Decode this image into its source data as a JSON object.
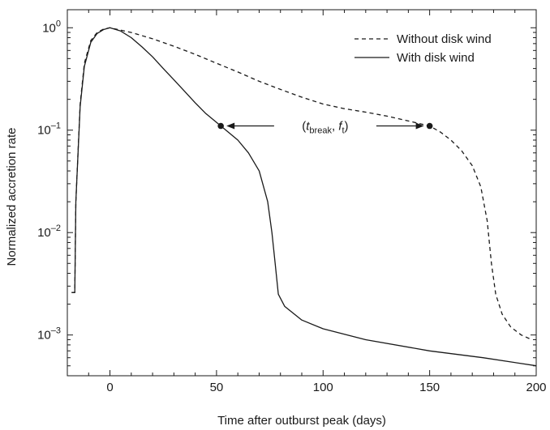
{
  "chart_data": {
    "type": "line",
    "xlabel": "Time after outburst peak (days)",
    "ylabel": "Normalized accretion rate",
    "xlim": [
      -20,
      200
    ],
    "ylim": [
      0.0004,
      1.5
    ],
    "yscale": "log",
    "grid": false,
    "legend_position": "top-right",
    "x_ticks": [
      0,
      50,
      100,
      150,
      200
    ],
    "x_tick_labels": [
      "0",
      "50",
      "100",
      "150",
      "200"
    ],
    "y_ticks": [
      0.001,
      0.01,
      0.1,
      1
    ],
    "y_tick_labels": [
      {
        "base": "10",
        "exp": "–3"
      },
      {
        "base": "10",
        "exp": "–2"
      },
      {
        "base": "10",
        "exp": "–1"
      },
      {
        "base": "10",
        "exp": "0"
      }
    ],
    "series": [
      {
        "name": "Without disk wind",
        "style": "dashed",
        "color": "#1a1a1a",
        "points": [
          [
            -18,
            0.0026
          ],
          [
            -16.5,
            0.0026
          ],
          [
            -16,
            0.02
          ],
          [
            -14,
            0.18
          ],
          [
            -12,
            0.45
          ],
          [
            -9,
            0.75
          ],
          [
            -6,
            0.9
          ],
          [
            -3,
            0.97
          ],
          [
            0,
            1.0
          ],
          [
            10,
            0.9
          ],
          [
            20,
            0.78
          ],
          [
            30,
            0.66
          ],
          [
            40,
            0.55
          ],
          [
            50,
            0.45
          ],
          [
            60,
            0.37
          ],
          [
            70,
            0.3
          ],
          [
            80,
            0.25
          ],
          [
            90,
            0.21
          ],
          [
            100,
            0.18
          ],
          [
            110,
            0.162
          ],
          [
            120,
            0.15
          ],
          [
            130,
            0.137
          ],
          [
            140,
            0.123
          ],
          [
            150,
            0.11
          ],
          [
            155,
            0.096
          ],
          [
            160,
            0.08
          ],
          [
            165,
            0.063
          ],
          [
            170,
            0.045
          ],
          [
            174,
            0.028
          ],
          [
            177,
            0.013
          ],
          [
            179,
            0.005
          ],
          [
            181,
            0.0025
          ],
          [
            184,
            0.0016
          ],
          [
            188,
            0.0012
          ],
          [
            193,
            0.001
          ],
          [
            198,
            0.0009
          ]
        ]
      },
      {
        "name": "With disk wind",
        "style": "solid",
        "color": "#1a1a1a",
        "points": [
          [
            -18,
            0.0026
          ],
          [
            -16.5,
            0.0026
          ],
          [
            -16,
            0.02
          ],
          [
            -14,
            0.17
          ],
          [
            -12,
            0.42
          ],
          [
            -9,
            0.72
          ],
          [
            -6,
            0.88
          ],
          [
            -3,
            0.96
          ],
          [
            0,
            1.0
          ],
          [
            5,
            0.93
          ],
          [
            10,
            0.8
          ],
          [
            15,
            0.65
          ],
          [
            20,
            0.52
          ],
          [
            25,
            0.4
          ],
          [
            30,
            0.31
          ],
          [
            35,
            0.24
          ],
          [
            40,
            0.185
          ],
          [
            45,
            0.145
          ],
          [
            52,
            0.11
          ],
          [
            60,
            0.08
          ],
          [
            65,
            0.06
          ],
          [
            70,
            0.04
          ],
          [
            74,
            0.02
          ],
          [
            76,
            0.01
          ],
          [
            77.5,
            0.005
          ],
          [
            79,
            0.0025
          ],
          [
            82,
            0.0019
          ],
          [
            90,
            0.0014
          ],
          [
            100,
            0.00115
          ],
          [
            120,
            0.0009
          ],
          [
            150,
            0.0007
          ],
          [
            175,
            0.0006
          ],
          [
            200,
            0.0005
          ]
        ]
      }
    ],
    "markers": [
      {
        "x": 52,
        "y": 0.11
      },
      {
        "x": 150,
        "y": 0.11
      }
    ],
    "annotation": {
      "open": "(",
      "t": "t",
      "t_sub": "break",
      "sep": ", ",
      "f": "f",
      "f_sub": "t",
      "close": ")",
      "x": 101,
      "y": 0.11
    }
  }
}
